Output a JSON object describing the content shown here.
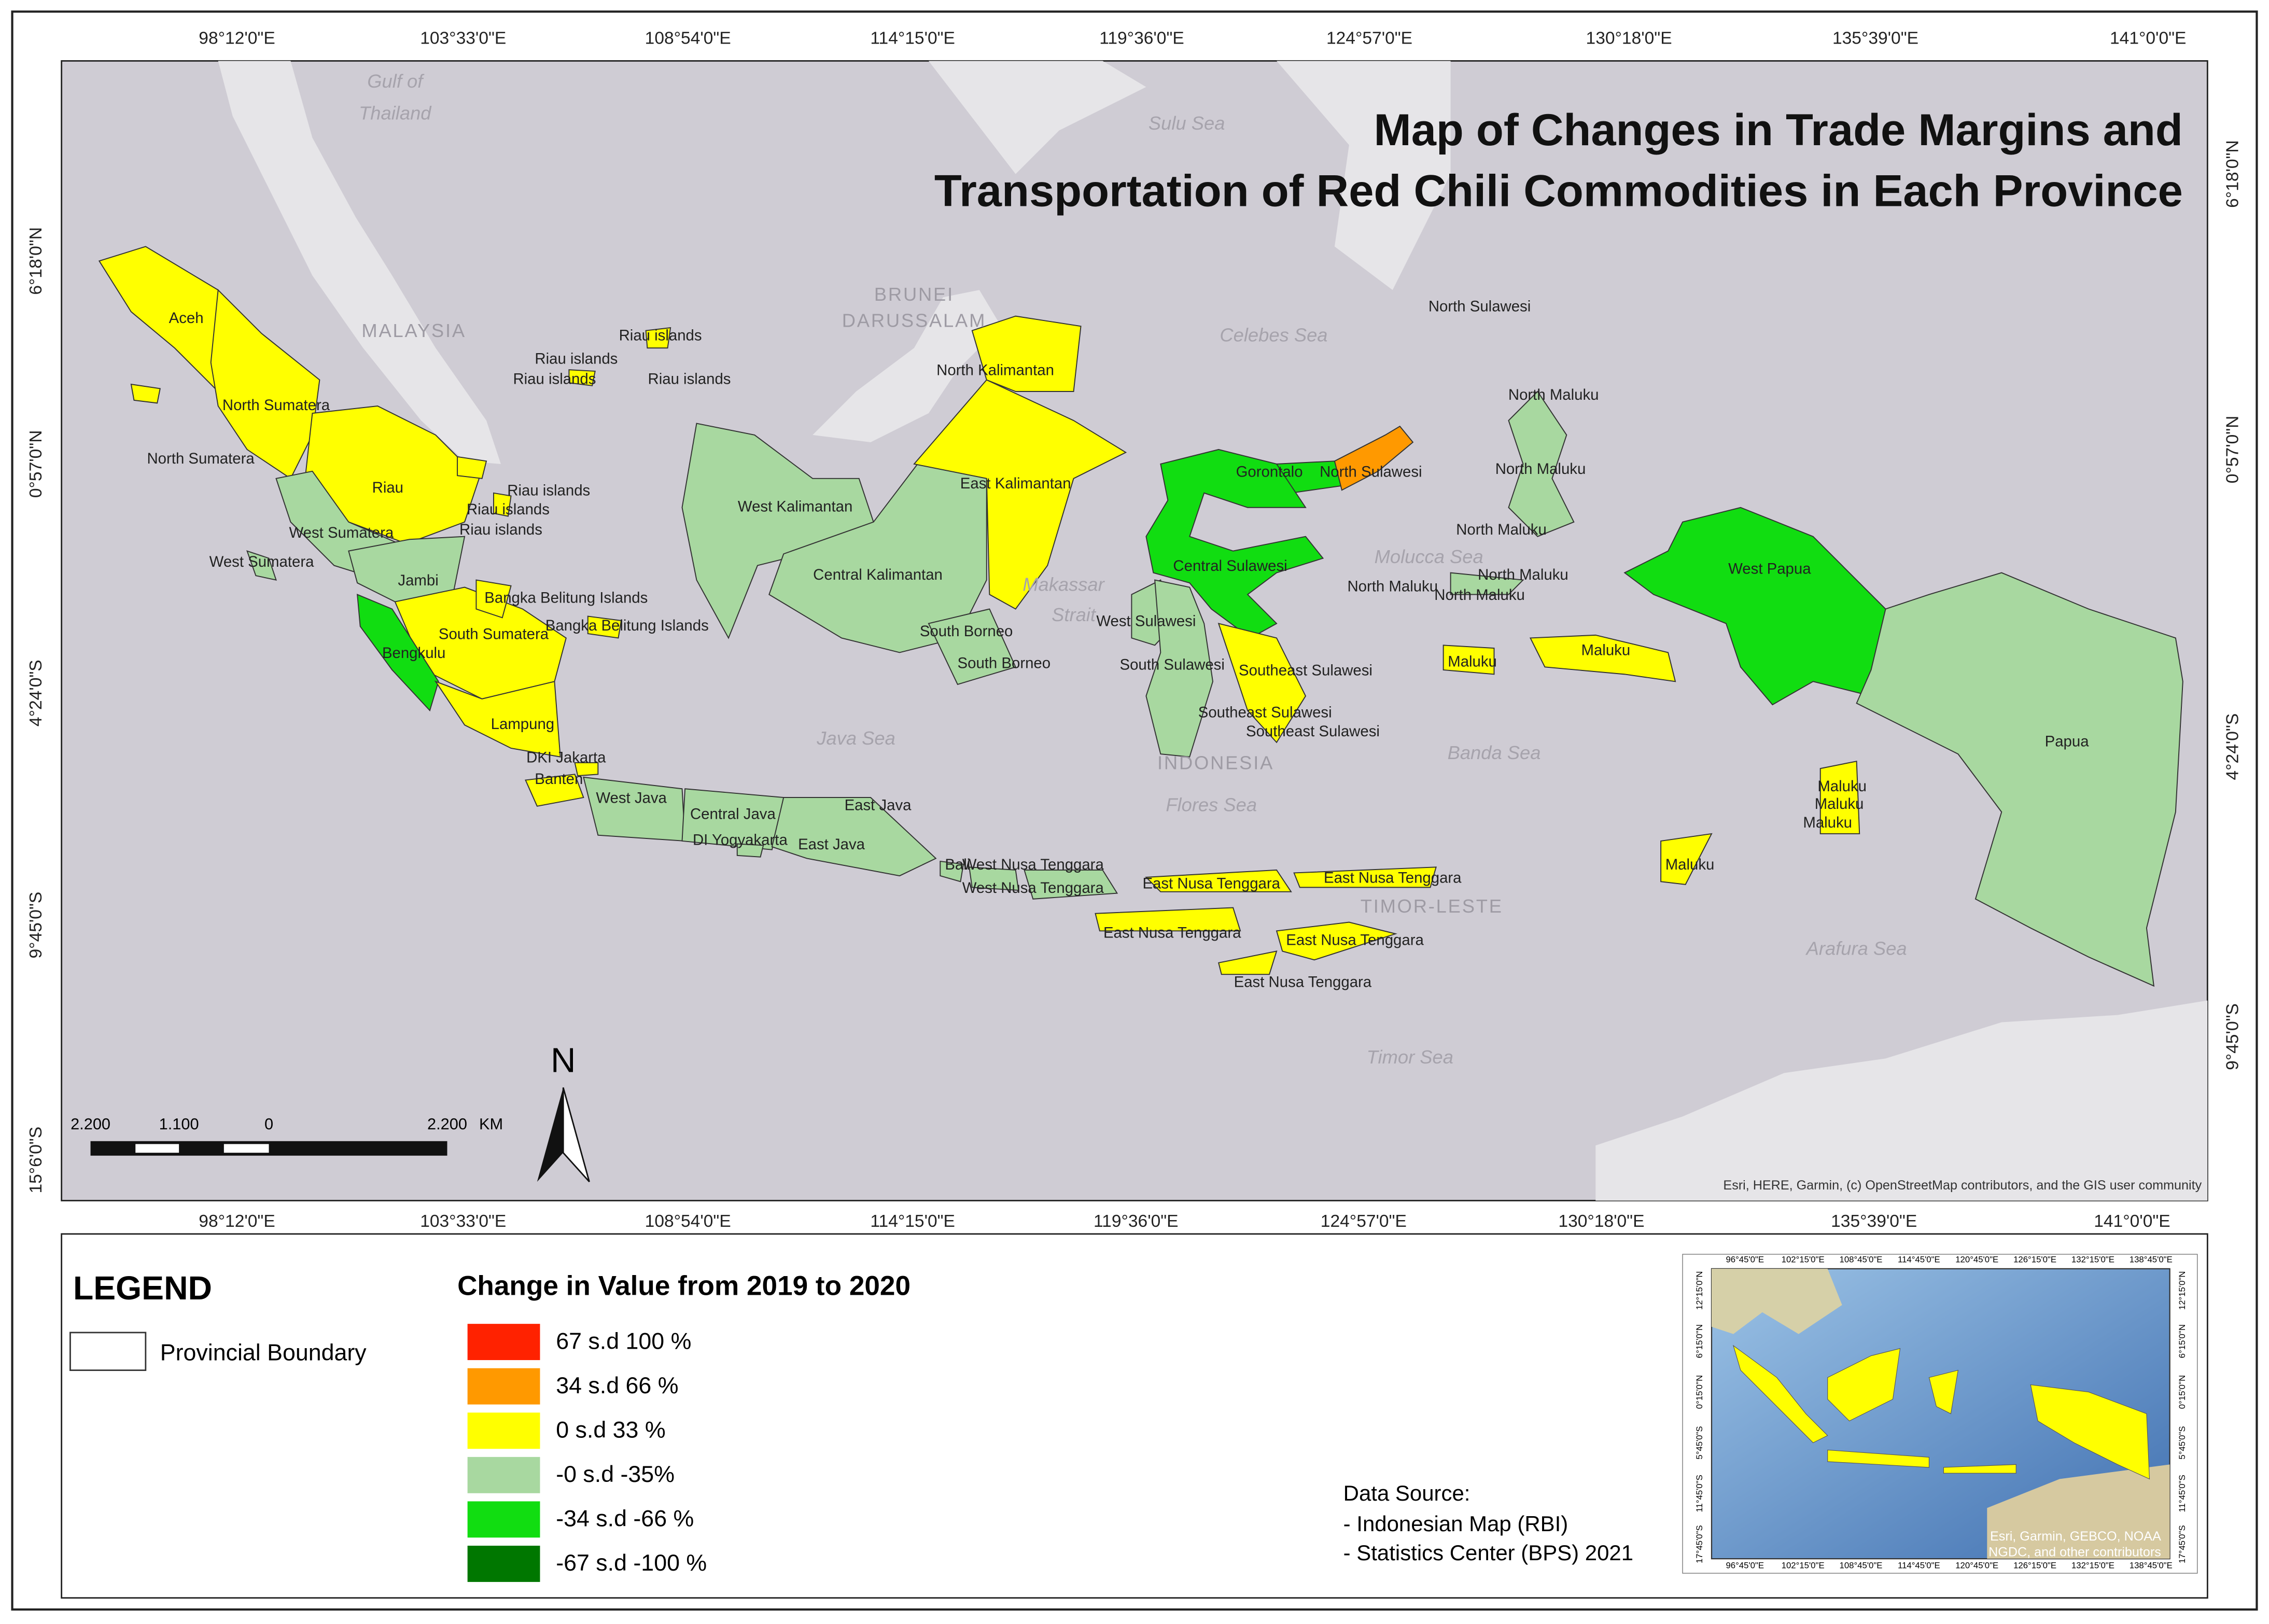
{
  "title": [
    "Map of Changes in Trade Margins and",
    "Transportation of Red Chili Commodities in Each Province"
  ],
  "lon_labels": [
    "98°12'0\"E",
    "103°33'0\"E",
    "108°54'0\"E",
    "114°15'0\"E",
    "119°36'0\"E",
    "124°57'0\"E",
    "130°18'0\"E",
    "135°39'0\"E",
    "141°0'0\"E"
  ],
  "lat_labels": [
    "6°18'0\"N",
    "0°57'0\"N",
    "4°24'0\"S",
    "9°45'0\"S",
    "15°6'0\"S"
  ],
  "regions": [
    {
      "name": "Aceh",
      "color": "#ffff00"
    },
    {
      "name": "North Sumatera",
      "color": "#ffff00"
    },
    {
      "name": "Riau",
      "color": "#ffff00"
    },
    {
      "name": "West Sumatera",
      "color": "#a8d8a0"
    },
    {
      "name": "Jambi",
      "color": "#a8d8a0"
    },
    {
      "name": "South Sumatera",
      "color": "#ffff00"
    },
    {
      "name": "Bengkulu",
      "color": "#11dd11"
    },
    {
      "name": "Lampung",
      "color": "#ffff00"
    },
    {
      "name": "Bangka Belitung Islands",
      "color": "#ffff00"
    },
    {
      "name": "Riau islands",
      "color": "#ffff00"
    },
    {
      "name": "Banten",
      "color": "#ffff00"
    },
    {
      "name": "DKI Jakarta",
      "color": "#ffff00"
    },
    {
      "name": "West Java",
      "color": "#a8d8a0"
    },
    {
      "name": "Central Java",
      "color": "#a8d8a0"
    },
    {
      "name": "DI Yogyakarta",
      "color": "#a8d8a0"
    },
    {
      "name": "East Java",
      "color": "#a8d8a0"
    },
    {
      "name": "Bali",
      "color": "#a8d8a0"
    },
    {
      "name": "West Nusa Tenggara",
      "color": "#a8d8a0"
    },
    {
      "name": "East Nusa Tenggara",
      "color": "#ffff00"
    },
    {
      "name": "West Kalimantan",
      "color": "#a8d8a0"
    },
    {
      "name": "Central Kalimantan",
      "color": "#a8d8a0"
    },
    {
      "name": "South Borneo",
      "color": "#a8d8a0"
    },
    {
      "name": "East Kalimantan",
      "color": "#ffff00"
    },
    {
      "name": "North Kalimantan",
      "color": "#ffff00"
    },
    {
      "name": "Gorontalo",
      "color": "#11dd11"
    },
    {
      "name": "North Sulawesi",
      "color": "#ff9900"
    },
    {
      "name": "Central Sulawesi",
      "color": "#11dd11"
    },
    {
      "name": "West Sulawesi",
      "color": "#a8d8a0"
    },
    {
      "name": "South Sulawesi",
      "color": "#a8d8a0"
    },
    {
      "name": "Southeast Sulawesi",
      "color": "#ffff00"
    },
    {
      "name": "North Maluku",
      "color": "#a8d8a0"
    },
    {
      "name": "Maluku",
      "color": "#ffff00"
    },
    {
      "name": "West Papua",
      "color": "#11dd11"
    },
    {
      "name": "Papua",
      "color": "#a8d8a0"
    }
  ],
  "extra_labels": [
    "North Sumatera",
    "West Sumatera",
    "Riau islands",
    "Riau islands",
    "Riau islands",
    "Riau islands",
    "Riau islands",
    "Riau islands",
    "Bangka Belitung Islands",
    "East Java",
    "West Nusa Tenggara",
    "East Nusa Tenggara",
    "East Nusa Tenggara",
    "East Nusa Tenggara",
    "East Nusa Tenggara",
    "South Borneo",
    "North Sulawesi",
    "Southeast Sulawesi",
    "Southeast Sulawesi",
    "North Maluku",
    "North Maluku",
    "North Maluku",
    "North Maluku",
    "North Maluku",
    "Maluku",
    "Maluku",
    "Maluku",
    "Maluku",
    "Maluku"
  ],
  "sea_labels": [
    "Gulf of",
    "Thailand",
    "Sulu Sea",
    "Celebes Sea",
    "Molucca Sea",
    "Makassar",
    "Strait",
    "Java Sea",
    "Flores Sea",
    "Banda Sea",
    "Arafura Sea",
    "Timor Sea"
  ],
  "country_labels": [
    "MALAYSIA",
    "BRUNEI",
    "DARUSSALAM",
    "INDONESIA",
    "TIMOR-LESTE"
  ],
  "attribution": "Esri, HERE, Garmin, (c) OpenStreetMap contributors, and the GIS user community",
  "scale_bar": {
    "labels": [
      "2.200",
      "1.100",
      "0",
      "2.200"
    ],
    "unit": "KM"
  },
  "north_label": "N",
  "legend": {
    "title": "LEGEND",
    "boundary": "Provincial Boundary",
    "classes_title": "Change in Value from 2019 to 2020",
    "classes": [
      {
        "label": "67 s.d 100 %",
        "color": "#ff2200"
      },
      {
        "label": "34 s.d 66 %",
        "color": "#ff9900"
      },
      {
        "label": "0 s.d 33 %",
        "color": "#ffff00"
      },
      {
        "label": "-0 s.d -35%",
        "color": "#a8d8a0"
      },
      {
        "label": "-34 s.d -66 %",
        "color": "#11dd11"
      },
      {
        "label": "-67 s.d -100 %",
        "color": "#007700"
      }
    ]
  },
  "data_source": [
    "Data Source:",
    "- Indonesian Map (RBI)",
    "- Statistics Center (BPS) 2021"
  ],
  "inset": {
    "lon_labels": [
      "96°45'0\"E",
      "102°15'0\"E",
      "108°45'0\"E",
      "114°45'0\"E",
      "120°45'0\"E",
      "126°15'0\"E",
      "132°15'0\"E",
      "138°45'0\"E"
    ],
    "lat_labels": [
      "12°15'0\"N",
      "6°15'0\"N",
      "0°15'0\"N",
      "5°45'0\"S",
      "11°45'0\"S",
      "17°45'0\"S"
    ],
    "attribution": [
      "Esri, Garmin, GEBCO, NOAA",
      "NGDC, and other contributors"
    ]
  }
}
